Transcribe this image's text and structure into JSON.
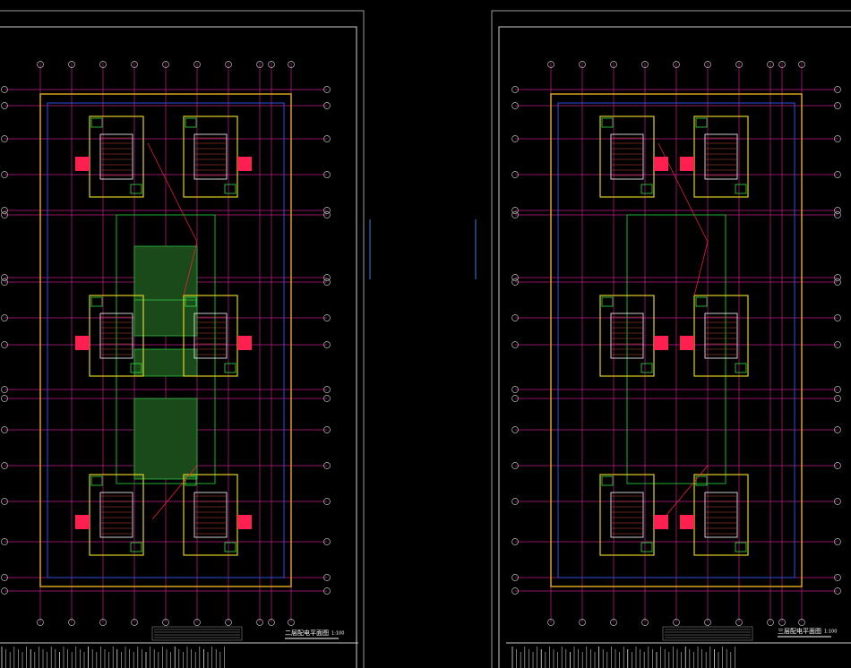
{
  "sheets": [
    {
      "title": "二层配电平面图",
      "scale": "1:100"
    },
    {
      "title": "三层配电平面图",
      "scale": "1:100"
    }
  ]
}
